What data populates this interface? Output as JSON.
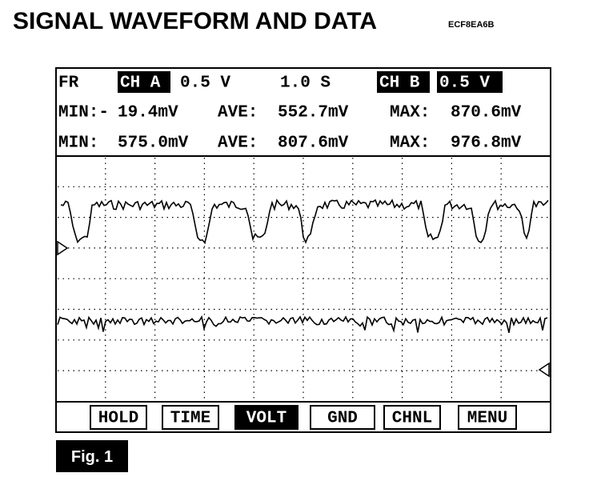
{
  "header": {
    "title": "SIGNAL WAVEFORM AND DATA",
    "code": "ECF8EA6B"
  },
  "screen": {
    "status": {
      "mode": "FR",
      "ch_a": "CH A",
      "ch_a_scale": "0.5 V",
      "time_scale": "1.0 S",
      "ch_b": "CH B",
      "ch_b_scale": "0.5 V"
    },
    "readouts": [
      {
        "min_label": "MIN:-",
        "min": "19.4mV",
        "ave_label": "AVE:",
        "ave": "552.7mV",
        "max_label": "MAX:",
        "max": "870.6mV"
      },
      {
        "min_label": "MIN:",
        "min": "575.0mV",
        "ave_label": "AVE:",
        "ave": "807.6mV",
        "max_label": "MAX:",
        "max": "976.8mV"
      }
    ],
    "buttons": [
      "HOLD",
      "TIME",
      "VOLT",
      "GND",
      "CHNL",
      "MENU"
    ]
  },
  "figure_label": "Fig. 1"
}
